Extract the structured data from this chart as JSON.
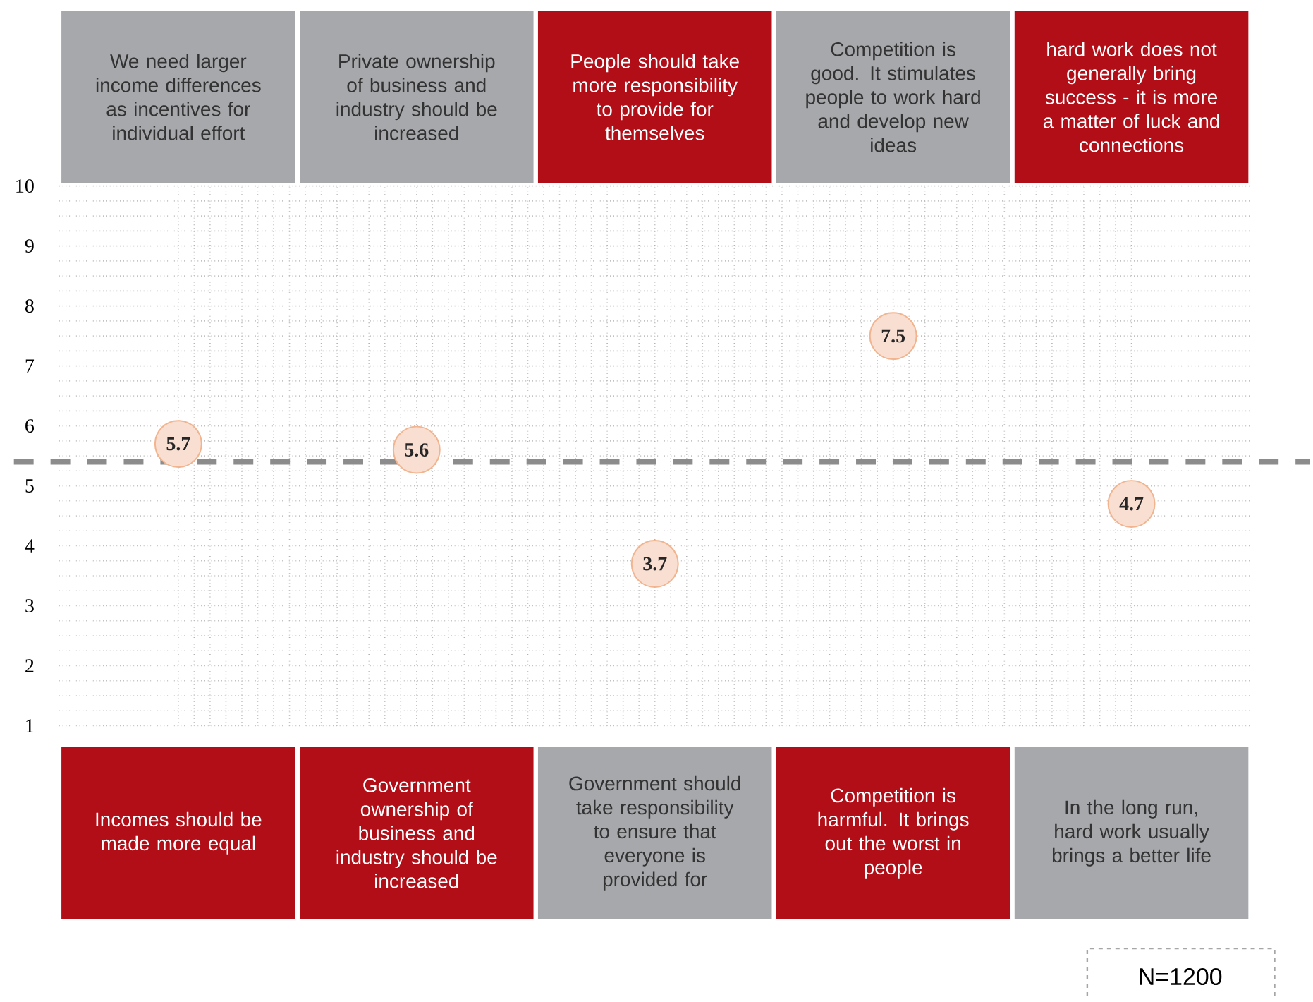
{
  "chart_data": {
    "type": "scatter",
    "categories": [
      "Incomes should be made more equal",
      "Government ownership of business and industry should be increased",
      "Government should take responsibility to ensure that everyone is provided for",
      "Competition is harmful. It brings out the worst in people",
      "In the long run, hard work usually brings a better life"
    ],
    "values": [
      5.7,
      5.6,
      3.7,
      7.5,
      4.7
    ],
    "color": "#f9dfd2",
    "data_labels": true,
    "marker": "circle",
    "ylim": [
      1,
      10
    ],
    "yticks": [
      1,
      2,
      3,
      4,
      5,
      6,
      7,
      8,
      9,
      10
    ],
    "grid": true,
    "ref_lines": [
      {
        "axis": "y",
        "value": 5.4,
        "color": "#8c8c8c",
        "line_style": "dashed"
      }
    ],
    "annotations": [
      "We need larger income differences as incentives for individual effort",
      "Private ownership of business and industry should be increased",
      "People should take more responsibility to provide for themselves",
      "Competition is good. It stimulates people to work hard and develop new ideas",
      "hard work does not generally bring success - it is more a matter of luck and connections",
      "N=1200"
    ]
  }
}
